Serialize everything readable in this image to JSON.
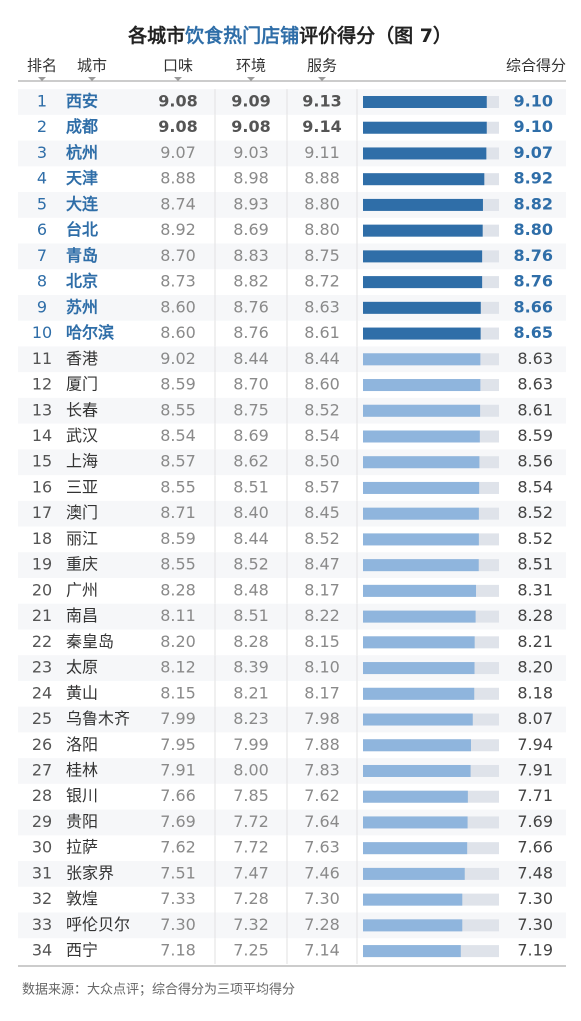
{
  "title": {
    "prefix": "各城市",
    "highlight": "饮食热门店铺",
    "suffix": "评价得分（图 7）"
  },
  "columns": [
    "排名",
    "城市",
    "口味",
    "环境",
    "服务",
    "综合得分"
  ],
  "bar_xlim": [
    0,
    10
  ],
  "top_color": "#2f6ea8",
  "rest_color": "#8fb5dd",
  "track_color": "#dfe3ea",
  "rows": [
    {
      "rank": 1,
      "city": "西安",
      "taste": "9.08",
      "env": "9.09",
      "service": "9.13",
      "overall": 9.1,
      "overall_label": "9.10"
    },
    {
      "rank": 2,
      "city": "成都",
      "taste": "9.08",
      "env": "9.08",
      "service": "9.14",
      "overall": 9.1,
      "overall_label": "9.10"
    },
    {
      "rank": 3,
      "city": "杭州",
      "taste": "9.07",
      "env": "9.03",
      "service": "9.11",
      "overall": 9.07
    },
    {
      "rank": 4,
      "city": "天津",
      "taste": "8.88",
      "env": "8.98",
      "service": "8.88",
      "overall": 8.92
    },
    {
      "rank": 5,
      "city": "大连",
      "taste": "8.74",
      "env": "8.93",
      "service": "8.80",
      "overall": 8.82
    },
    {
      "rank": 6,
      "city": "台北",
      "taste": "8.92",
      "env": "8.69",
      "service": "8.80",
      "overall": 8.8,
      "overall_label": "8.80"
    },
    {
      "rank": 7,
      "city": "青岛",
      "taste": "8.70",
      "env": "8.83",
      "service": "8.75",
      "overall": 8.76
    },
    {
      "rank": 8,
      "city": "北京",
      "taste": "8.73",
      "env": "8.82",
      "service": "8.72",
      "overall": 8.76
    },
    {
      "rank": 9,
      "city": "苏州",
      "taste": "8.60",
      "env": "8.76",
      "service": "8.63",
      "overall": 8.66
    },
    {
      "rank": 10,
      "city": "哈尔滨",
      "taste": "8.60",
      "env": "8.76",
      "service": "8.61",
      "overall": 8.65
    },
    {
      "rank": 11,
      "city": "香港",
      "taste": "9.02",
      "env": "8.44",
      "service": "8.44",
      "overall": 8.63
    },
    {
      "rank": 12,
      "city": "厦门",
      "taste": "8.59",
      "env": "8.70",
      "service": "8.60",
      "overall": 8.63
    },
    {
      "rank": 13,
      "city": "长春",
      "taste": "8.55",
      "env": "8.75",
      "service": "8.52",
      "overall": 8.61
    },
    {
      "rank": 14,
      "city": "武汉",
      "taste": "8.54",
      "env": "8.69",
      "service": "8.54",
      "overall": 8.59
    },
    {
      "rank": 15,
      "city": "上海",
      "taste": "8.57",
      "env": "8.62",
      "service": "8.50",
      "overall": 8.56
    },
    {
      "rank": 16,
      "city": "三亚",
      "taste": "8.55",
      "env": "8.51",
      "service": "8.57",
      "overall": 8.54
    },
    {
      "rank": 17,
      "city": "澳门",
      "taste": "8.71",
      "env": "8.40",
      "service": "8.45",
      "overall": 8.52
    },
    {
      "rank": 18,
      "city": "丽江",
      "taste": "8.59",
      "env": "8.44",
      "service": "8.52",
      "overall": 8.52
    },
    {
      "rank": 19,
      "city": "重庆",
      "taste": "8.55",
      "env": "8.52",
      "service": "8.47",
      "overall": 8.51
    },
    {
      "rank": 20,
      "city": "广州",
      "taste": "8.28",
      "env": "8.48",
      "service": "8.17",
      "overall": 8.31
    },
    {
      "rank": 21,
      "city": "南昌",
      "taste": "8.11",
      "env": "8.51",
      "service": "8.22",
      "overall": 8.28
    },
    {
      "rank": 22,
      "city": "秦皇岛",
      "taste": "8.20",
      "env": "8.28",
      "service": "8.15",
      "overall": 8.21
    },
    {
      "rank": 23,
      "city": "太原",
      "taste": "8.12",
      "env": "8.39",
      "service": "8.10",
      "overall": 8.2,
      "overall_label": "8.20"
    },
    {
      "rank": 24,
      "city": "黄山",
      "taste": "8.15",
      "env": "8.21",
      "service": "8.17",
      "overall": 8.18
    },
    {
      "rank": 25,
      "city": "乌鲁木齐",
      "taste": "7.99",
      "env": "8.23",
      "service": "7.98",
      "overall": 8.07
    },
    {
      "rank": 26,
      "city": "洛阳",
      "taste": "7.95",
      "env": "7.99",
      "service": "7.88",
      "overall": 7.94
    },
    {
      "rank": 27,
      "city": "桂林",
      "taste": "7.91",
      "env": "8.00",
      "service": "7.83",
      "overall": 7.91
    },
    {
      "rank": 28,
      "city": "银川",
      "taste": "7.66",
      "env": "7.85",
      "service": "7.62",
      "overall": 7.71
    },
    {
      "rank": 29,
      "city": "贵阳",
      "taste": "7.69",
      "env": "7.72",
      "service": "7.64",
      "overall": 7.69
    },
    {
      "rank": 30,
      "city": "拉萨",
      "taste": "7.62",
      "env": "7.72",
      "service": "7.63",
      "overall": 7.66
    },
    {
      "rank": 31,
      "city": "张家界",
      "taste": "7.51",
      "env": "7.47",
      "service": "7.46",
      "overall": 7.48
    },
    {
      "rank": 32,
      "city": "敦煌",
      "taste": "7.33",
      "env": "7.28",
      "service": "7.30",
      "overall": 7.3,
      "overall_label": "7.30"
    },
    {
      "rank": 33,
      "city": "呼伦贝尔",
      "taste": "7.30",
      "env": "7.32",
      "service": "7.28",
      "overall": 7.3,
      "overall_label": "7.30"
    },
    {
      "rank": 34,
      "city": "西宁",
      "taste": "7.18",
      "env": "7.25",
      "service": "7.14",
      "overall": 7.19
    }
  ],
  "source": "数据来源：大众点评；综合得分为三项平均得分"
}
